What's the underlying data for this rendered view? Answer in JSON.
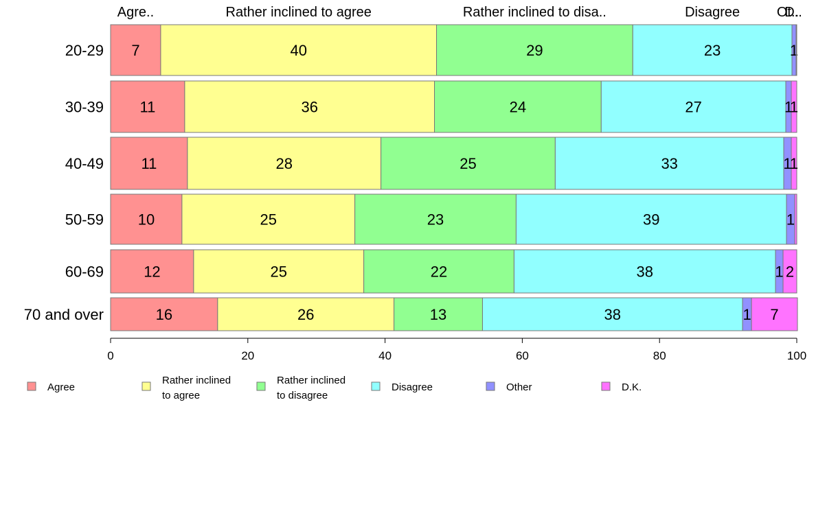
{
  "chart_data": {
    "type": "bar",
    "orientation": "horizontal",
    "stacked": true,
    "categories": [
      "20-29",
      "30-39",
      "40-49",
      "50-59",
      "60-69",
      "70 and over"
    ],
    "series": [
      {
        "name": "Agree",
        "color": "#ff9191",
        "values": [
          7.3,
          10.8,
          11.2,
          10.4,
          12.1,
          15.6
        ],
        "labels": [
          "7",
          "11",
          "11",
          "10",
          "12",
          "16"
        ]
      },
      {
        "name": "Rather inclined to agree",
        "color": "#ffff91",
        "values": [
          40.2,
          36.4,
          28.2,
          25.2,
          24.8,
          25.7
        ],
        "labels": [
          "40",
          "36",
          "28",
          "25",
          "25",
          "26"
        ]
      },
      {
        "name": "Rather inclined to disagree",
        "color": "#91ff91",
        "values": [
          28.6,
          24.3,
          25.4,
          23.5,
          21.9,
          12.9
        ],
        "labels": [
          "29",
          "24",
          "25",
          "23",
          "22",
          "13"
        ]
      },
      {
        "name": "Disagree",
        "color": "#91ffff",
        "values": [
          23.2,
          26.9,
          33.3,
          39.4,
          38.1,
          37.9
        ],
        "labels": [
          "23",
          "27",
          "33",
          "39",
          "38",
          "38"
        ]
      },
      {
        "name": "Other",
        "color": "#9191ff",
        "values": [
          0.6,
          0.8,
          1.1,
          1.2,
          1.1,
          1.3
        ],
        "labels": [
          "1",
          "1",
          "1",
          "1",
          "1",
          "1"
        ]
      },
      {
        "name": "D.K.",
        "color": "#ff73ff",
        "values": [
          0.1,
          0.8,
          0.8,
          0.3,
          2.0,
          6.7
        ],
        "labels": [
          "",
          "1",
          "1",
          "",
          "2",
          "7"
        ]
      }
    ],
    "top_labels": [
      "Agre..",
      "Rather inclined to agree",
      "Rather inclined to disa..",
      "Disagree",
      "Ot..",
      "D.."
    ],
    "xlim": [
      0,
      100
    ],
    "xticks": [
      "0",
      "20",
      "40",
      "60",
      "80",
      "100"
    ],
    "grid": false,
    "legend_position": "bottom",
    "legend": [
      {
        "lines": [
          "Agree"
        ],
        "color": "#ff9191"
      },
      {
        "lines": [
          "Rather inclined",
          "to agree"
        ],
        "color": "#ffff91"
      },
      {
        "lines": [
          "Rather inclined",
          "to disagree"
        ],
        "color": "#91ff91"
      },
      {
        "lines": [
          "Disagree"
        ],
        "color": "#91ffff"
      },
      {
        "lines": [
          "Other"
        ],
        "color": "#9191ff"
      },
      {
        "lines": [
          "D.K."
        ],
        "color": "#ff73ff"
      }
    ]
  }
}
